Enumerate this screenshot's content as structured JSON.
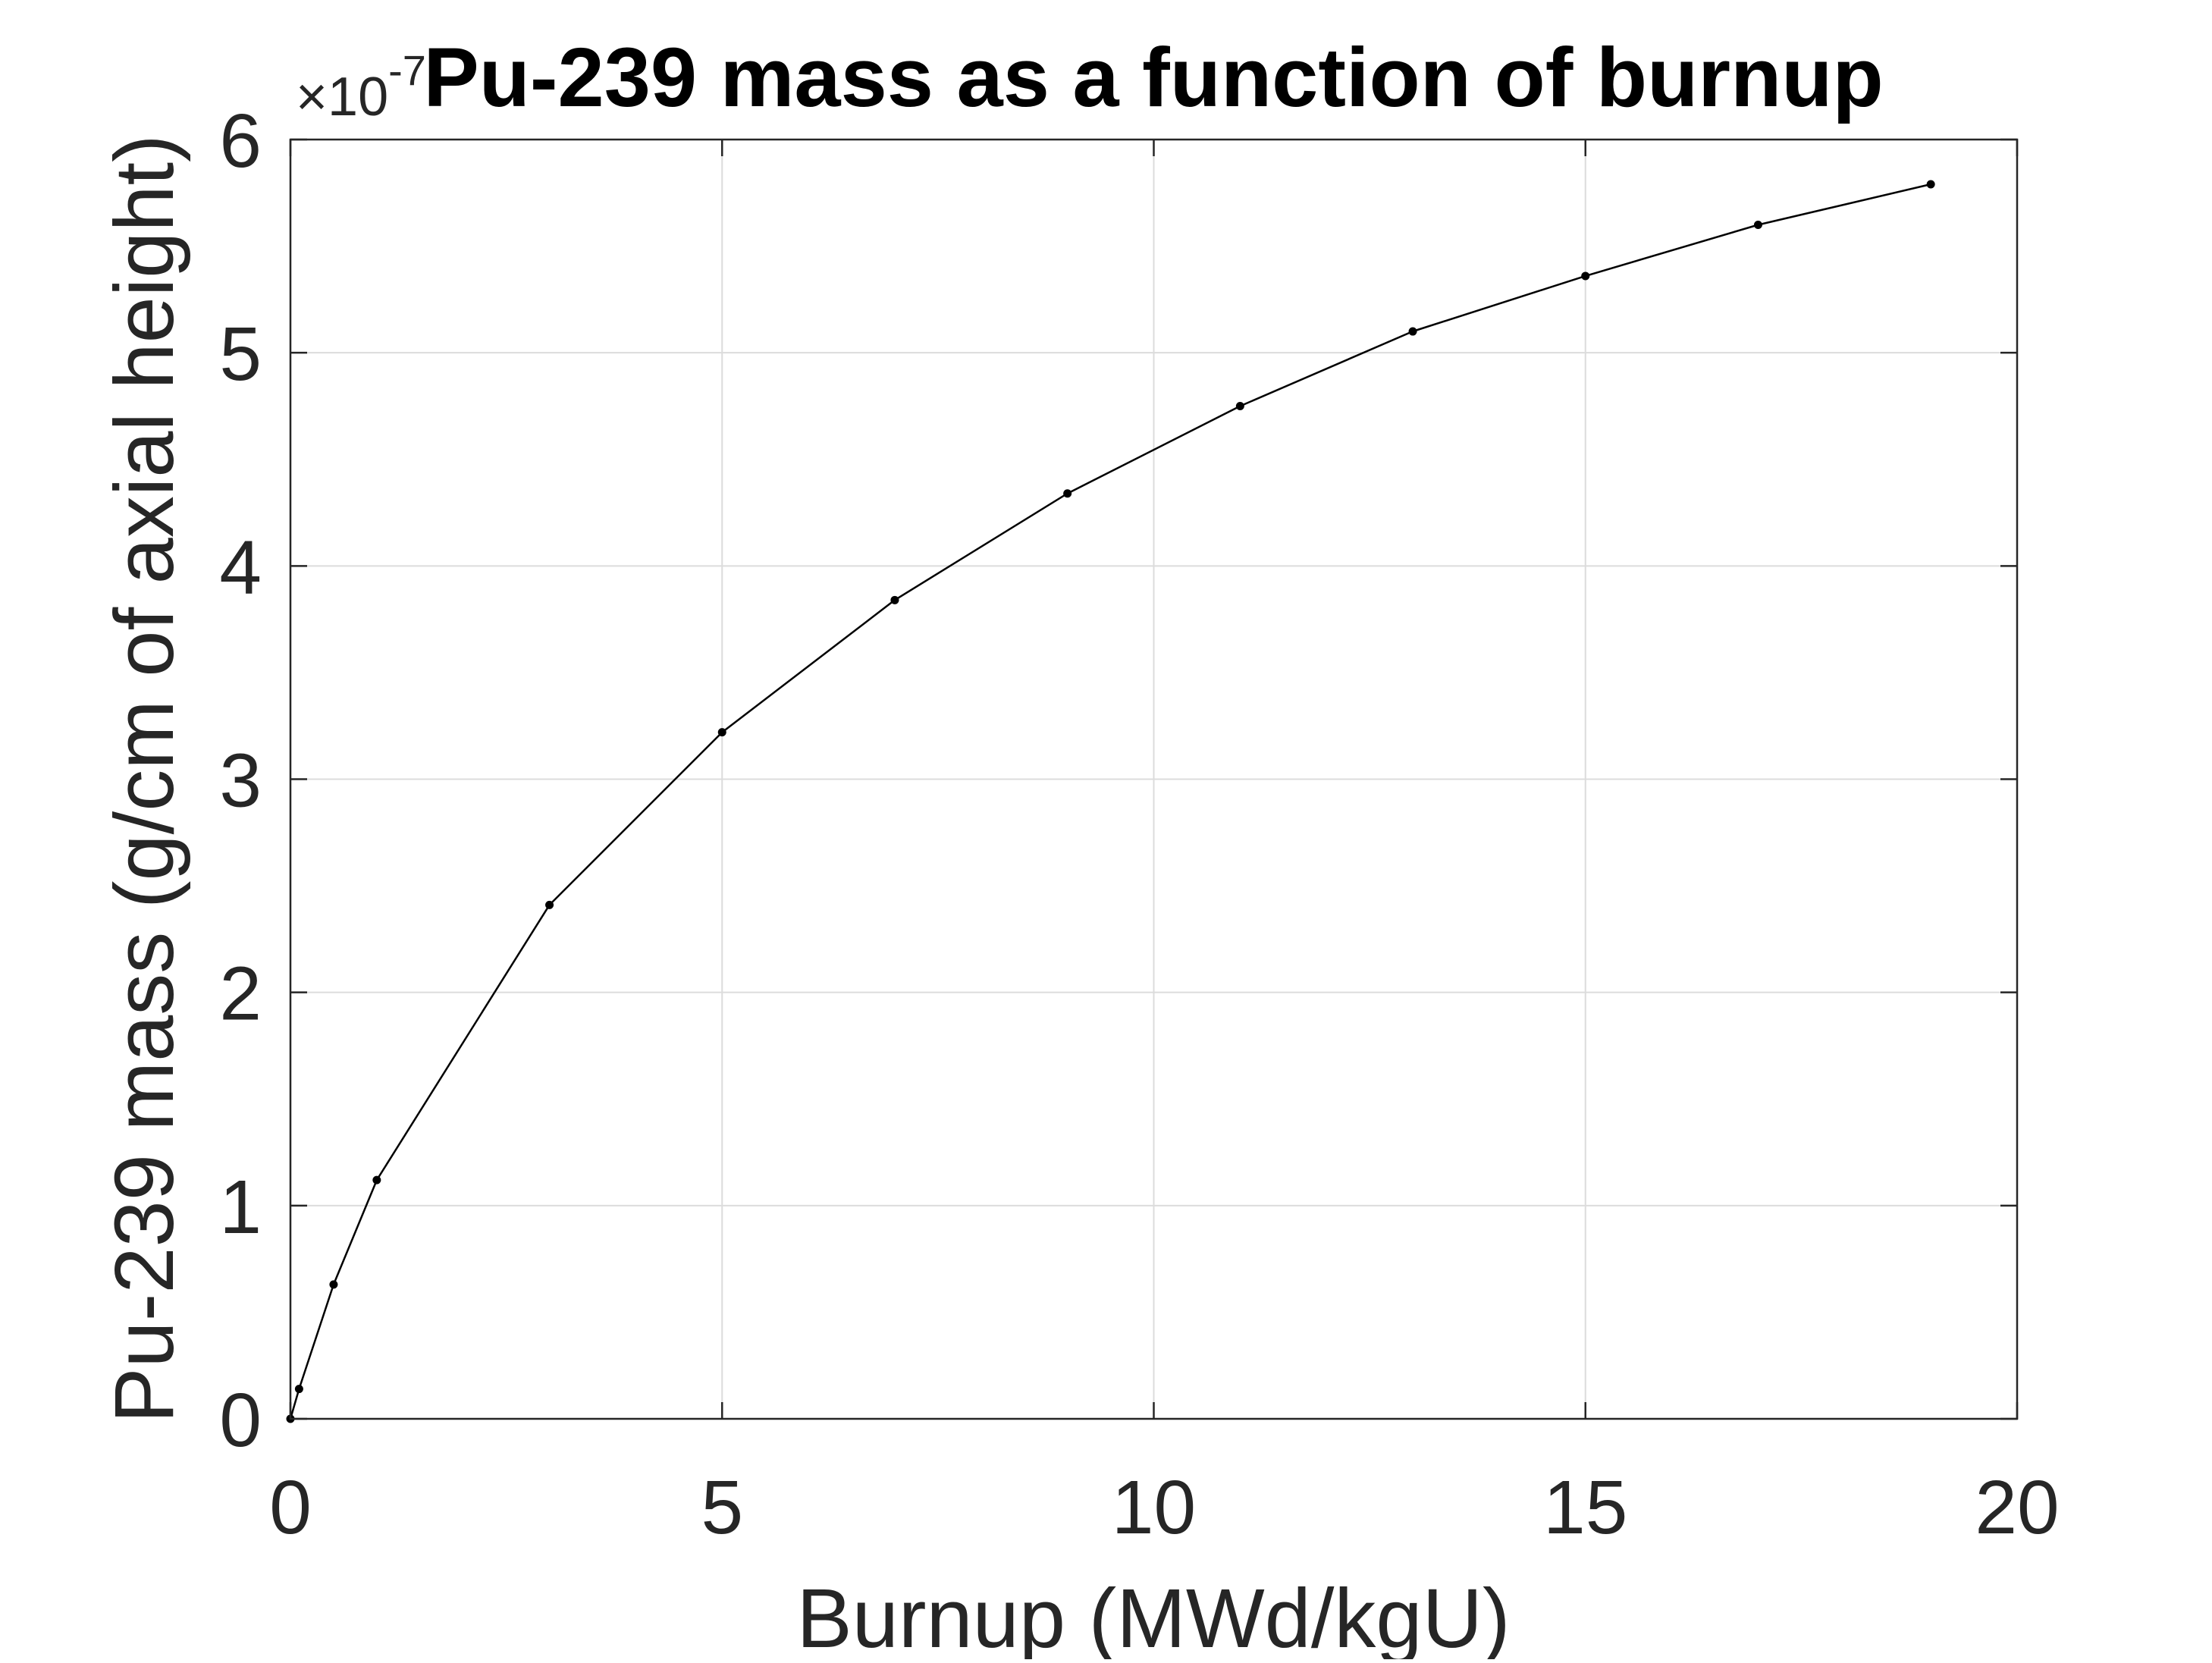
{
  "chart_data": {
    "type": "line",
    "title": "Pu-239 mass as a function of burnup",
    "xlabel": "Burnup (MWd/kgU)",
    "ylabel": "Pu-239 mass (g/cm of axial height)",
    "y_exponent_label": "×10",
    "y_exponent_power": "-7",
    "y_multiplier": 1e-07,
    "xlim": [
      0,
      20
    ],
    "ylim": [
      0,
      6
    ],
    "xticks": [
      0,
      5,
      10,
      15,
      20
    ],
    "yticks": [
      0,
      1,
      2,
      3,
      4,
      5,
      6
    ],
    "grid": true,
    "legend": "none",
    "colors": {
      "line": "#000000",
      "axes": "#262626",
      "grid": "#dcdcdc"
    },
    "series": [
      {
        "x": [
          0,
          0.1,
          0.5,
          1,
          3,
          5,
          7,
          9,
          11,
          13,
          15,
          17,
          19
        ],
        "y": [
          0,
          0.14,
          0.63,
          1.12,
          2.41,
          3.22,
          3.84,
          4.34,
          4.75,
          5.1,
          5.36,
          5.6,
          5.79
        ]
      }
    ]
  }
}
